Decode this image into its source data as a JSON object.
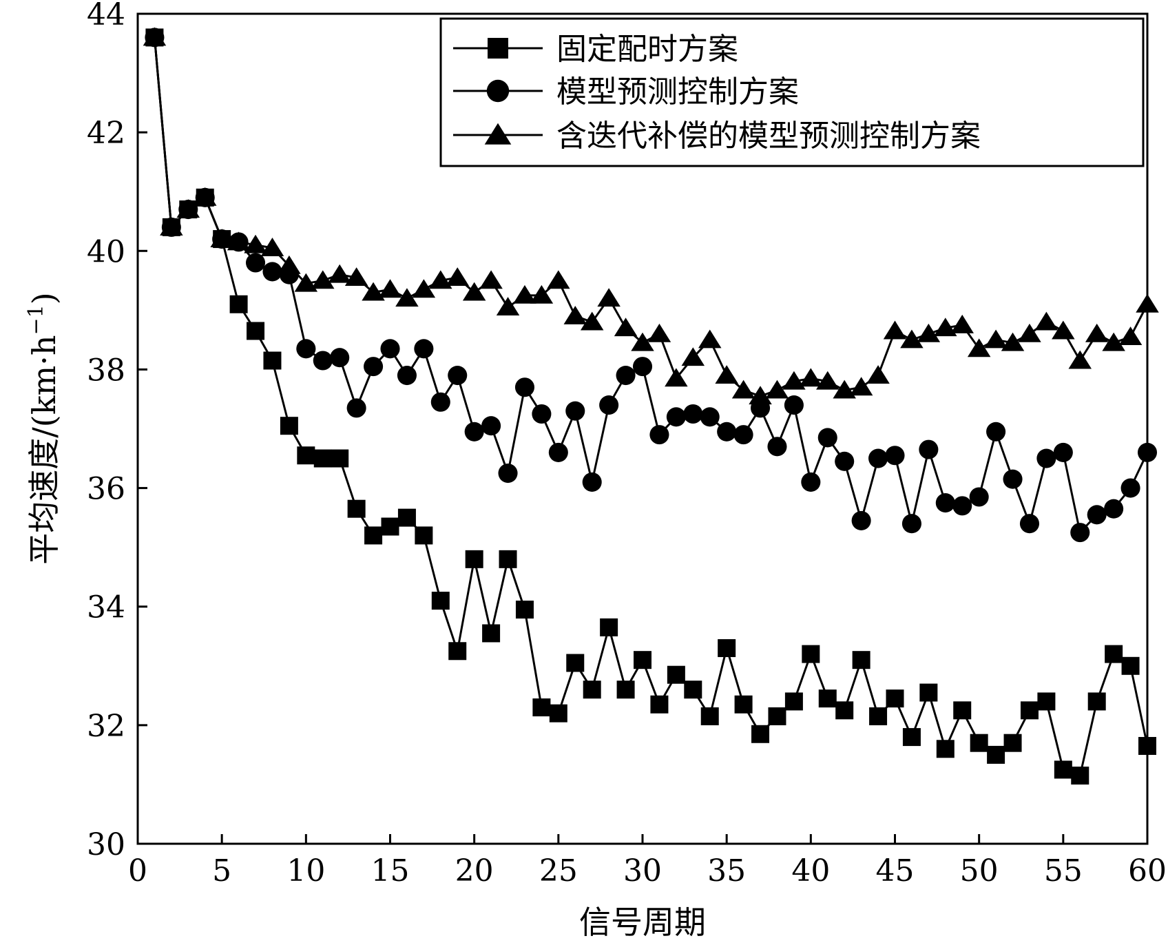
{
  "chart_data": {
    "type": "line",
    "xlabel": "信号周期",
    "ylabel": "平均速度/(km·h",
    "ylabel_sup": "−1",
    "ylabel_close": ")",
    "xlim": [
      0,
      60
    ],
    "ylim": [
      30,
      44
    ],
    "xticks": [
      0,
      5,
      10,
      15,
      20,
      25,
      30,
      35,
      40,
      45,
      50,
      55,
      60
    ],
    "yticks": [
      30,
      32,
      34,
      36,
      38,
      40,
      42,
      44
    ],
    "grid": false,
    "legend_position": "top-right",
    "x": [
      1,
      2,
      3,
      4,
      5,
      6,
      7,
      8,
      9,
      10,
      11,
      12,
      13,
      14,
      15,
      16,
      17,
      18,
      19,
      20,
      21,
      22,
      23,
      24,
      25,
      26,
      27,
      28,
      29,
      30,
      31,
      32,
      33,
      34,
      35,
      36,
      37,
      38,
      39,
      40,
      41,
      42,
      43,
      44,
      45,
      46,
      47,
      48,
      49,
      50,
      51,
      52,
      53,
      54,
      55,
      56,
      57,
      58,
      59,
      60
    ],
    "series": [
      {
        "name": "固定配时方案",
        "marker": "square",
        "values": [
          43.6,
          40.4,
          40.7,
          40.9,
          40.2,
          39.1,
          38.65,
          38.15,
          37.05,
          36.55,
          36.5,
          36.5,
          35.65,
          35.2,
          35.35,
          35.5,
          35.2,
          34.1,
          33.25,
          34.8,
          33.55,
          34.8,
          33.95,
          32.3,
          32.2,
          33.05,
          32.6,
          33.65,
          32.6,
          33.1,
          32.35,
          32.85,
          32.6,
          32.15,
          33.3,
          32.35,
          31.85,
          32.15,
          32.4,
          33.2,
          32.45,
          32.25,
          33.1,
          32.15,
          32.45,
          31.8,
          32.55,
          31.6,
          32.25,
          31.7,
          31.5,
          31.7,
          32.25,
          32.4,
          31.25,
          31.15,
          32.4,
          33.2,
          33.0,
          31.65
        ]
      },
      {
        "name": "模型预测控制方案",
        "marker": "circle",
        "values": [
          43.6,
          40.4,
          40.7,
          40.9,
          40.2,
          40.15,
          39.8,
          39.65,
          39.6,
          38.35,
          38.15,
          38.2,
          37.35,
          38.05,
          38.35,
          37.9,
          38.35,
          37.45,
          37.9,
          36.95,
          37.05,
          36.25,
          37.7,
          37.25,
          36.6,
          37.3,
          36.1,
          37.4,
          37.9,
          38.05,
          36.9,
          37.2,
          37.25,
          37.2,
          36.95,
          36.9,
          37.35,
          36.7,
          37.4,
          36.1,
          36.85,
          36.45,
          35.45,
          36.5,
          36.55,
          35.4,
          36.65,
          35.75,
          35.7,
          35.85,
          36.95,
          36.15,
          35.4,
          36.5,
          36.6,
          35.25,
          35.55,
          35.65,
          36.0,
          36.6
        ]
      },
      {
        "name": "含迭代补偿的模型预测控制方案",
        "marker": "triangle",
        "values": [
          43.6,
          40.4,
          40.7,
          40.9,
          40.2,
          40.15,
          40.1,
          40.05,
          39.75,
          39.45,
          39.5,
          39.6,
          39.55,
          39.3,
          39.35,
          39.2,
          39.35,
          39.5,
          39.55,
          39.3,
          39.5,
          39.05,
          39.25,
          39.25,
          39.5,
          38.9,
          38.8,
          39.2,
          38.7,
          38.45,
          38.6,
          37.85,
          38.2,
          38.5,
          37.9,
          37.65,
          37.55,
          37.65,
          37.8,
          37.85,
          37.8,
          37.65,
          37.7,
          37.9,
          38.65,
          38.5,
          38.6,
          38.7,
          38.75,
          38.35,
          38.5,
          38.45,
          38.6,
          38.8,
          38.65,
          38.15,
          38.6,
          38.45,
          38.55,
          39.1
        ]
      }
    ]
  }
}
